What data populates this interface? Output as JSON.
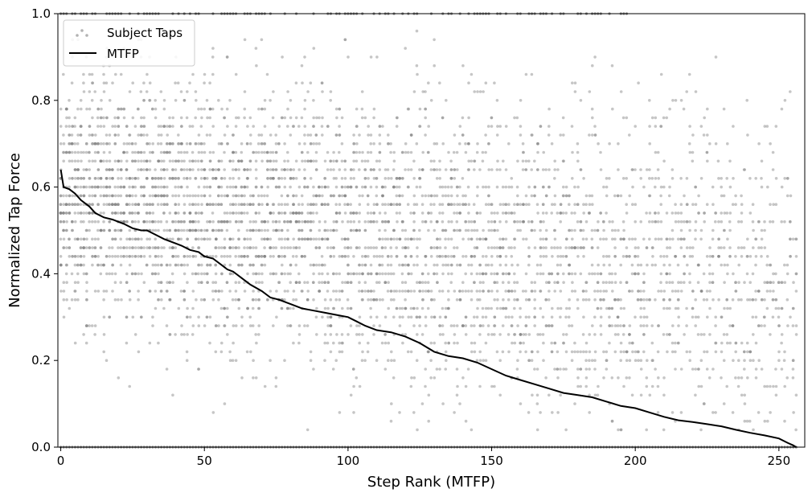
{
  "chart_data": {
    "type": "scatter",
    "title": "",
    "xlabel": "Step Rank (MTFP)",
    "ylabel": "Normalized Tap Force",
    "xlim": [
      -1,
      259
    ],
    "ylim": [
      0.0,
      1.0
    ],
    "xticks": [
      0,
      50,
      100,
      150,
      200,
      250
    ],
    "yticks": [
      0.0,
      0.2,
      0.4,
      0.6,
      0.8,
      1.0
    ],
    "xtick_labels": [
      "0",
      "50",
      "100",
      "150",
      "200",
      "250"
    ],
    "ytick_labels": [
      "0.0",
      "0.2",
      "0.4",
      "0.6",
      "0.8",
      "1.0"
    ],
    "grid": false,
    "legend_position": "top-left",
    "legend": [
      {
        "label": "Subject Taps",
        "marker": "dot",
        "color": "#808080"
      },
      {
        "label": "MTFP",
        "marker": "line",
        "color": "#000000"
      }
    ],
    "series": [
      {
        "name": "Subject Taps",
        "type": "scatter",
        "color": "#808080",
        "opacity": 0.45,
        "description": "many subject tap forces per step rank, spread mostly between 0.2 and 0.8, density shifting lower as rank increases; many points at 0.0 and 1.0"
      },
      {
        "name": "MTFP",
        "type": "line",
        "color": "#000000",
        "x": [
          0,
          1,
          3,
          5,
          7,
          10,
          12,
          15,
          18,
          20,
          22,
          25,
          28,
          30,
          33,
          36,
          40,
          42,
          45,
          48,
          50,
          53,
          56,
          58,
          60,
          63,
          66,
          70,
          73,
          76,
          80,
          84,
          88,
          92,
          96,
          100,
          103,
          106,
          110,
          115,
          120,
          125,
          130,
          135,
          140,
          145,
          150,
          155,
          160,
          165,
          170,
          175,
          180,
          185,
          190,
          195,
          200,
          205,
          210,
          215,
          220,
          225,
          230,
          235,
          240,
          245,
          250,
          253,
          255,
          256
        ],
        "y": [
          0.64,
          0.6,
          0.595,
          0.585,
          0.57,
          0.555,
          0.54,
          0.53,
          0.525,
          0.52,
          0.515,
          0.505,
          0.5,
          0.5,
          0.49,
          0.48,
          0.47,
          0.465,
          0.455,
          0.45,
          0.44,
          0.435,
          0.42,
          0.41,
          0.405,
          0.39,
          0.375,
          0.36,
          0.345,
          0.34,
          0.33,
          0.32,
          0.315,
          0.31,
          0.305,
          0.3,
          0.29,
          0.28,
          0.27,
          0.265,
          0.255,
          0.24,
          0.22,
          0.21,
          0.205,
          0.195,
          0.18,
          0.165,
          0.155,
          0.145,
          0.135,
          0.125,
          0.12,
          0.115,
          0.105,
          0.095,
          0.09,
          0.08,
          0.07,
          0.062,
          0.058,
          0.053,
          0.048,
          0.04,
          0.033,
          0.027,
          0.02,
          0.01,
          0.004,
          0.0
        ]
      }
    ]
  }
}
